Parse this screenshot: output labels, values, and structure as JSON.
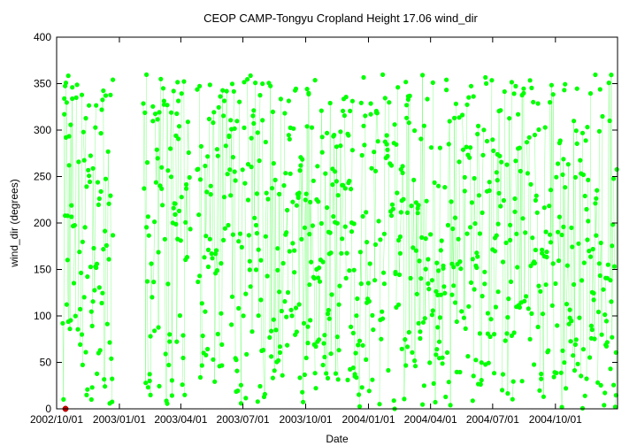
{
  "chart_data": {
    "type": "scatter",
    "title": "CEOP CAMP-Tongyu Cropland Height 17.06 wind_dir",
    "xlabel": "Date",
    "ylabel": "wind_dir (degrees)",
    "ylim": [
      0,
      400
    ],
    "xlim": [
      "2002-10-01",
      "2004-12-31"
    ],
    "y_ticks": [
      0,
      50,
      100,
      150,
      200,
      250,
      300,
      350,
      400
    ],
    "x_tick_labels": [
      "2002/10/01",
      "2003/01/01",
      "2003/04/01",
      "2003/07/01",
      "2003/10/01",
      "2004/01/01",
      "2004/04/01",
      "2004/07/01",
      "2004/10/01"
    ],
    "x_tick_dates": [
      "2002-10-01",
      "2003-01-01",
      "2003-04-01",
      "2003-07-01",
      "2003-10-01",
      "2004-01-01",
      "2004-04-01",
      "2004-07-01",
      "2004-10-01"
    ],
    "grid": false,
    "legend": "none",
    "colors": {
      "series": "#00ff00",
      "flagged": "#cc0000"
    },
    "data_spans": [
      [
        "2002-10-10",
        "2002-12-23"
      ],
      [
        "2003-02-05",
        "2003-04-15"
      ],
      [
        "2003-04-25",
        "2004-12-31"
      ]
    ],
    "series_range": [
      0,
      360
    ],
    "flagged_points": [
      {
        "x": "2002-10-14",
        "y": 0
      }
    ]
  }
}
